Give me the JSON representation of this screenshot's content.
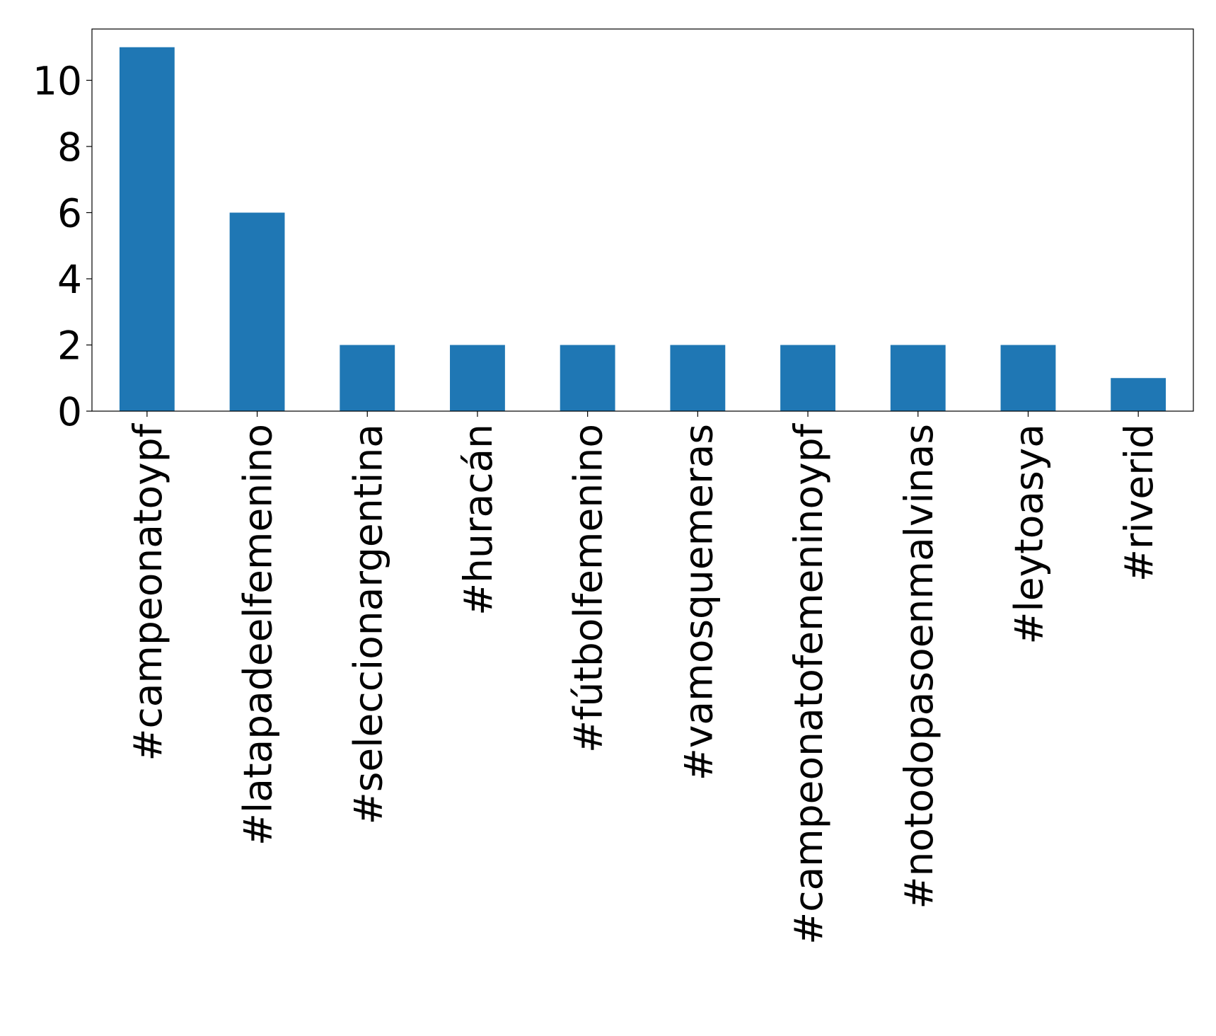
{
  "chart_data": {
    "type": "bar",
    "categories": [
      "#campeonatoypf",
      "#latapadeelfemenino",
      "#seleccionargentina",
      "#huracán",
      "#fútbolfemenino",
      "#vamosquemeras",
      "#campeonatofemeninoypf",
      "#notodopasoenmalvinas",
      "#leytoasya",
      "#riverid"
    ],
    "values": [
      11,
      6,
      2,
      2,
      2,
      2,
      2,
      2,
      2,
      1
    ],
    "color": "#1f77b4",
    "ylim": [
      0,
      11.55
    ],
    "yticks": [
      0,
      2,
      4,
      6,
      8,
      10
    ],
    "grid": false
  }
}
